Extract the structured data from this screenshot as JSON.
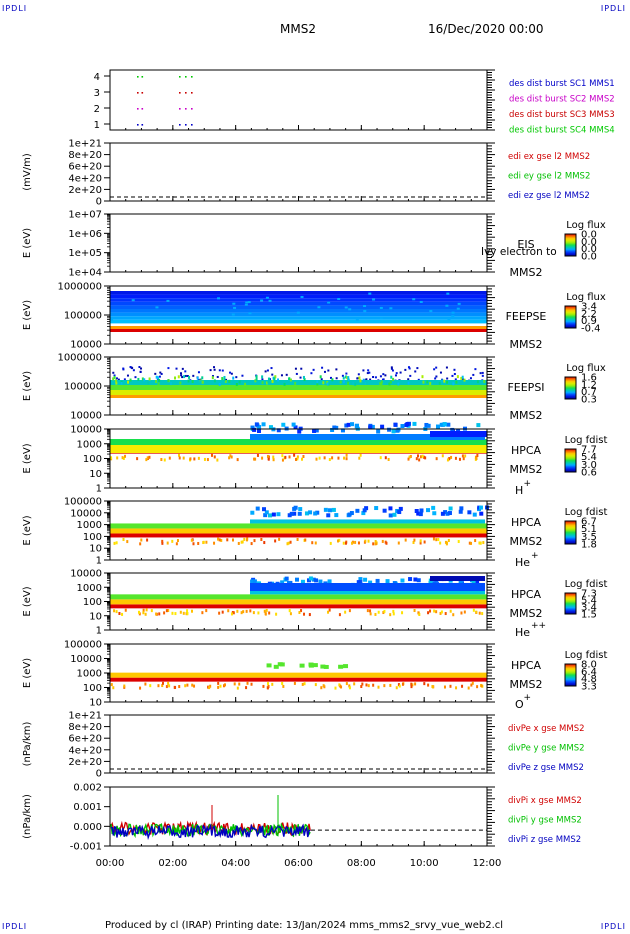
{
  "corner_label": "IPDLI",
  "header": {
    "spacecraft": "MMS2",
    "datetime": "16/Dec/2020 00:00"
  },
  "footer": {
    "text": "Produced by cl (IRAP)   Printing date: 13/Jan/2024   mms_mms2_srvy_vue_web2.cl"
  },
  "colors": {
    "sc1": "#0000c8",
    "sc2": "#c800c8",
    "sc3": "#c80000",
    "sc4": "#00c800",
    "red": "#d00000",
    "green": "#00c000",
    "blue": "#0000c0"
  },
  "chart_data": [
    {
      "id": "burst",
      "type": "scatter",
      "yticks": [
        "4",
        "3",
        "2",
        "1"
      ],
      "legend": [
        "des dist burst SC1 MMS1",
        "des dist burst SC2 MMS2",
        "des dist burst SC3 MMS3",
        "des dist burst SC4 MMS4"
      ],
      "x": [
        "00:30",
        "00:40",
        "02:00",
        "02:10",
        "02:25"
      ]
    },
    {
      "id": "edi",
      "type": "line",
      "ylabel": "(mV/m)",
      "yticks": [
        "1e+21",
        "8e+20",
        "6e+20",
        "4e+20",
        "2e+20",
        "0"
      ],
      "legend": [
        "edi ex gse l2 MMS2",
        "edi ey gse l2 MMS2",
        "edi ez gse l2 MMS2"
      ]
    },
    {
      "id": "eis",
      "type": "heatmap",
      "ylabel": "E (eV)",
      "yticks": [
        "1e+07",
        "1e+06",
        "1e+05",
        "1e+04"
      ],
      "label": "EIS",
      "sub": "MMS2",
      "overlay": "Ivy electron to",
      "cb_title": "Log flux",
      "cb_ticks": [
        "0.0",
        "0.0",
        "0.0",
        "0.0"
      ]
    },
    {
      "id": "feepse",
      "type": "heatmap",
      "ylabel": "E (eV)",
      "yticks": [
        "1000000",
        "100000",
        "10000"
      ],
      "label": "FEEPSE",
      "sub": "MMS2",
      "cb_title": "Log flux",
      "cb_ticks": [
        "3.4",
        "2.2",
        "0.9",
        "-0.4"
      ]
    },
    {
      "id": "feepsi",
      "type": "heatmap",
      "ylabel": "E (eV)",
      "yticks": [
        "1000000",
        "100000",
        "10000"
      ],
      "label": "FEEPSI",
      "sub": "MMS2",
      "cb_title": "Log flux",
      "cb_ticks": [
        "1.6",
        "1.2",
        "0.7",
        "0.3"
      ]
    },
    {
      "id": "hpca_h",
      "type": "heatmap",
      "ylabel": "E (eV)",
      "yticks": [
        "10000",
        "1000",
        "100",
        "10",
        "1"
      ],
      "label": "HPCA",
      "sub": "MMS2",
      "species": "H",
      "charge": "+",
      "cb_title": "Log fdist",
      "cb_ticks": [
        "7.7",
        "5.4",
        "3.0",
        "0.6"
      ]
    },
    {
      "id": "hpca_he",
      "type": "heatmap",
      "ylabel": "E (eV)",
      "yticks": [
        "100000",
        "10000",
        "1000",
        "100",
        "10",
        "1"
      ],
      "label": "HPCA",
      "sub": "MMS2",
      "species": "He",
      "charge": "+",
      "cb_title": "Log fdist",
      "cb_ticks": [
        "6.7",
        "5.1",
        "3.5",
        "1.8"
      ]
    },
    {
      "id": "hpca_hepp",
      "type": "heatmap",
      "ylabel": "E (eV)",
      "yticks": [
        "10000",
        "1000",
        "100",
        "10",
        "1"
      ],
      "label": "HPCA",
      "sub": "MMS2",
      "species": "He",
      "charge": "++",
      "cb_title": "Log fdist",
      "cb_ticks": [
        "7.3",
        "5.4",
        "3.4",
        "1.5"
      ]
    },
    {
      "id": "hpca_o",
      "type": "heatmap",
      "ylabel": "E (eV)",
      "yticks": [
        "100000",
        "10000",
        "1000",
        "100",
        "10"
      ],
      "label": "HPCA",
      "sub": "MMS2",
      "species": "O",
      "charge": "+",
      "cb_title": "Log fdist",
      "cb_ticks": [
        "8.0",
        "6.4",
        "4.8",
        "3.3"
      ]
    },
    {
      "id": "divpe",
      "type": "line",
      "ylabel": "(nPa/km)",
      "yticks": [
        "1e+21",
        "8e+20",
        "6e+20",
        "4e+20",
        "2e+20",
        "0"
      ],
      "legend": [
        "divPe x gse MMS2",
        "divPe y gse MMS2",
        "divPe z gse MMS2"
      ]
    },
    {
      "id": "divpi",
      "type": "line",
      "ylabel": "(nPa/km)",
      "yticks": [
        "0.002",
        "0.001",
        "0.000",
        "-0.001"
      ],
      "legend": [
        "divPi x gse MMS2",
        "divPi y gse MMS2",
        "divPi z gse MMS2"
      ],
      "xticks": [
        "00:00",
        "02:00",
        "04:00",
        "06:00",
        "08:00",
        "10:00",
        "12:00"
      ]
    }
  ]
}
